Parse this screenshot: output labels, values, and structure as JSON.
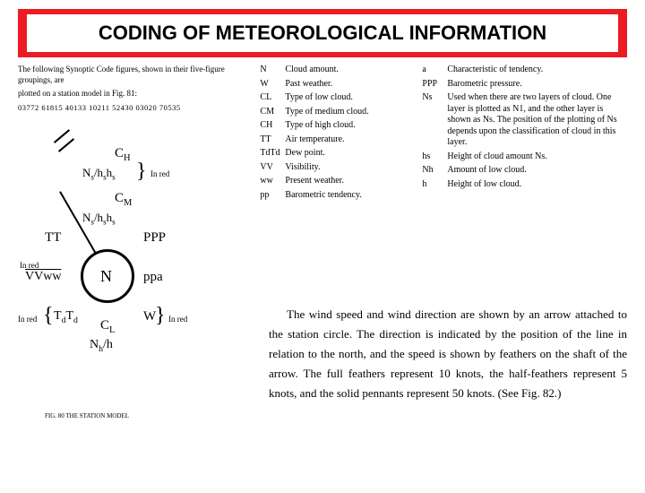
{
  "title": "CODING OF METEOROLOGICAL INFORMATION",
  "intro_line1": "The following Synoptic Code figures, shown in their five-figure groupings, are",
  "intro_line2": "plotted on a station model in Fig. 81:",
  "code_groups": "03772  61815  40133  10211  52430  03020  70535",
  "station": {
    "CH": "C",
    "CH_sub": "H",
    "CM": "C",
    "CM_sub": "M",
    "CL": "C",
    "CL_sub": "L",
    "ns_upper": "Ns/hshs",
    "ns_lower": "Ns/hshs",
    "TT": "TT",
    "PPP": "PPP",
    "N": "N",
    "ppa": "ppa",
    "VVww": "VVww",
    "TdTd": "TdTd",
    "W": "W",
    "Nhh": "Nh/h",
    "in_red": "In red",
    "caption": "FIG. 80  THE STATION MODEL"
  },
  "legend_mid": [
    {
      "sym": "N",
      "desc": "Cloud amount."
    },
    {
      "sym": "W",
      "desc": "Past weather."
    },
    {
      "sym": "CL",
      "desc": "Type of low cloud."
    },
    {
      "sym": "CM",
      "desc": "Type of medium cloud."
    },
    {
      "sym": "CH",
      "desc": "Type of high cloud."
    },
    {
      "sym": "TT",
      "desc": "Air temperature."
    },
    {
      "sym": "TdTd",
      "desc": "Dew point."
    },
    {
      "sym": "VV",
      "desc": "Visibility."
    },
    {
      "sym": "ww",
      "desc": "Present weather."
    },
    {
      "sym": "pp",
      "desc": "Barometric tendency."
    }
  ],
  "legend_right": [
    {
      "sym": "a",
      "desc": "Characteristic of tendency."
    },
    {
      "sym": "PPP",
      "desc": "Barometric pressure."
    },
    {
      "sym": "Ns",
      "desc": "Used when there are two layers of cloud. One layer is plotted as N1, and the other layer is shown as Ns. The position of the plotting of Ns depends upon the classification of cloud in this layer."
    },
    {
      "sym": "hs",
      "desc": "Height of cloud amount Ns."
    },
    {
      "sym": "Nh",
      "desc": "Amount of low cloud."
    },
    {
      "sym": "h",
      "desc": "Height of low cloud."
    }
  ],
  "paragraph_text": "The wind speed and wind direction are shown by an arrow attached to the station circle. The direction is indicated by the position of the line in relation to the north, and the speed is shown by feathers on the shaft of the arrow. The full feathers represent 10 knots, the half-feathers represent 5 knots, and the solid pennants represent 50 knots. (See Fig. 82.)"
}
